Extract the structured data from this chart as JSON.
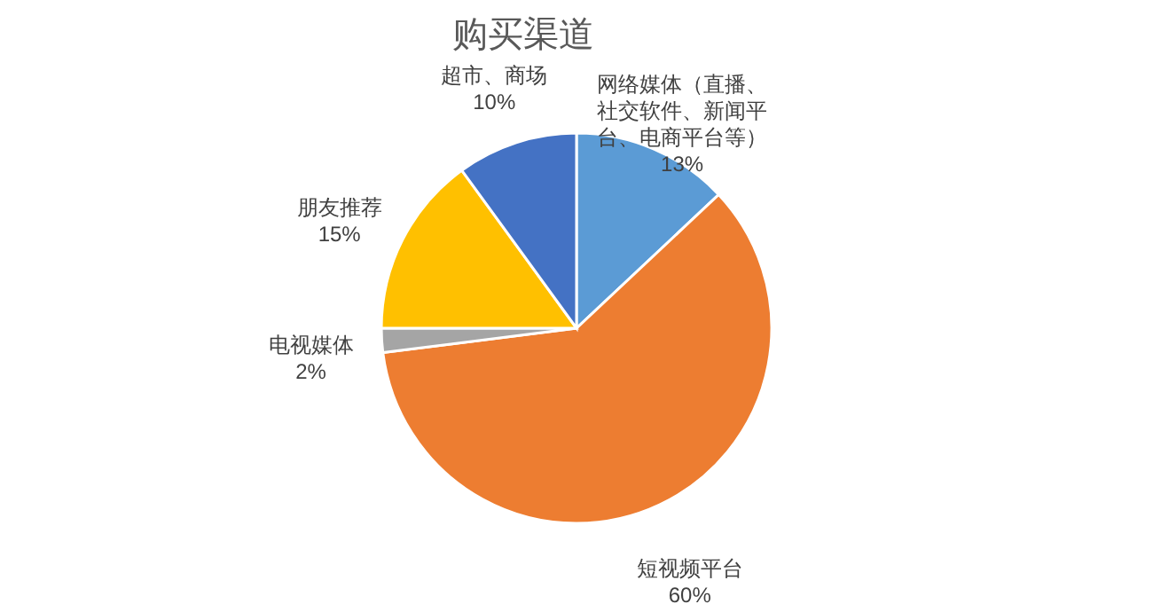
{
  "chart_data": {
    "type": "pie",
    "title": "购买渠道",
    "categories": [
      "网络媒体（直播、社交软件、新闻平台、电商平台等）",
      "短视频平台",
      "电视媒体",
      "朋友推荐",
      "超市、商场"
    ],
    "values": [
      13,
      60,
      2,
      15,
      10
    ],
    "value_labels": [
      "13%",
      "60%",
      "2%",
      "15%",
      "10%"
    ],
    "colors": [
      "#5b9bd5",
      "#ed7d31",
      "#a5a5a5",
      "#ffc000",
      "#4472c4"
    ],
    "legend": false
  }
}
